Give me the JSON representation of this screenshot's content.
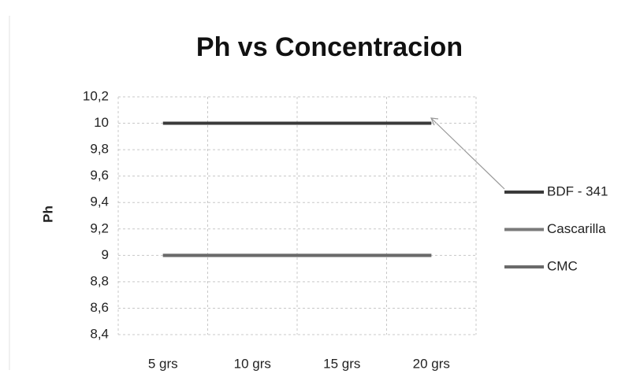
{
  "chart_data": {
    "type": "line",
    "title": "Ph vs Concentracion",
    "y_label": "Ph",
    "categories": [
      "5 grs",
      "10 grs",
      "15 grs",
      "20 grs"
    ],
    "series": [
      {
        "name": "BDF - 341",
        "color": "#3a3a3a",
        "values": [
          10,
          10,
          10,
          10
        ]
      },
      {
        "name": "Cascarilla",
        "color": "#7a7a7a",
        "values": [
          9,
          9,
          9,
          9
        ]
      },
      {
        "name": "CMC",
        "color": "#6a6a6a",
        "values": [
          9,
          9,
          9,
          9
        ]
      }
    ],
    "ylim": [
      8.4,
      10.2
    ],
    "yticks": [
      {
        "value": 8.4,
        "label": "8,4"
      },
      {
        "value": 8.6,
        "label": "8,6"
      },
      {
        "value": 8.8,
        "label": "8,8"
      },
      9,
      {
        "value": 9.2,
        "label": "9,2"
      },
      {
        "value": 9.4,
        "label": "9,4"
      },
      {
        "value": 9.6,
        "label": "9,6"
      },
      {
        "value": 9.8,
        "label": "9,8"
      },
      10,
      {
        "value": 10.2,
        "label": "10,2"
      }
    ],
    "grid": true,
    "legend": "right"
  }
}
